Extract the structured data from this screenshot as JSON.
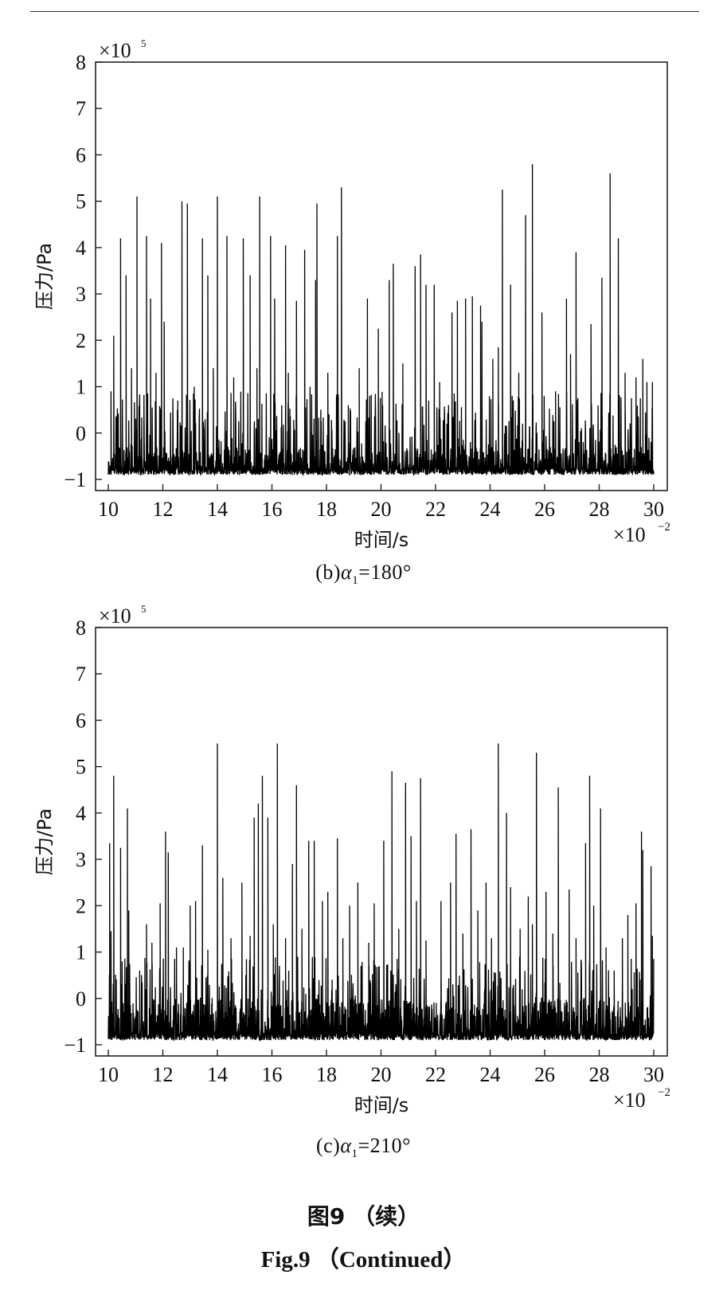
{
  "chart_data": [
    {
      "type": "line",
      "panel": "b",
      "caption_prefix": "(b)",
      "caption_symbol": "α",
      "caption_sub": "1",
      "caption_value": "=180°",
      "xlabel": "时间/s",
      "ylabel": "压力/Pa",
      "x_multiplier": "×10",
      "x_multiplier_exp": "−2",
      "y_multiplier": "×10",
      "y_multiplier_exp": "5",
      "xlim": [
        10,
        30
      ],
      "ylim": [
        -1,
        8
      ],
      "xticks": [
        10,
        12,
        14,
        16,
        18,
        20,
        22,
        24,
        26,
        28,
        30
      ],
      "yticks": [
        -1,
        0,
        1,
        2,
        3,
        4,
        5,
        6,
        7,
        8
      ],
      "xtick_labels": [
        "10",
        "12",
        "14",
        "16",
        "18",
        "20",
        "22",
        "24",
        "26",
        "28",
        "30"
      ],
      "ytick_labels": [
        "−1",
        "0",
        "1",
        "2",
        "3",
        "4",
        "5",
        "6",
        "7",
        "8"
      ],
      "grid": false,
      "baseline_range": [
        -0.9,
        -0.3
      ],
      "peaks": [
        {
          "x": 10.1,
          "y": 0.9
        },
        {
          "x": 10.2,
          "y": 2.1
        },
        {
          "x": 10.45,
          "y": 4.2
        },
        {
          "x": 10.65,
          "y": 3.4
        },
        {
          "x": 10.85,
          "y": 1.4
        },
        {
          "x": 11.05,
          "y": 5.1
        },
        {
          "x": 11.4,
          "y": 4.25
        },
        {
          "x": 11.55,
          "y": 2.9
        },
        {
          "x": 11.75,
          "y": 1.3
        },
        {
          "x": 11.95,
          "y": 4.1
        },
        {
          "x": 12.05,
          "y": 2.4
        },
        {
          "x": 12.55,
          "y": 0.7
        },
        {
          "x": 12.7,
          "y": 5.0
        },
        {
          "x": 12.9,
          "y": 4.95
        },
        {
          "x": 13.15,
          "y": 1.0
        },
        {
          "x": 13.45,
          "y": 4.2
        },
        {
          "x": 13.65,
          "y": 3.4
        },
        {
          "x": 13.85,
          "y": 1.4
        },
        {
          "x": 14.0,
          "y": 5.1
        },
        {
          "x": 14.35,
          "y": 4.25
        },
        {
          "x": 14.6,
          "y": 1.2
        },
        {
          "x": 14.95,
          "y": 4.2
        },
        {
          "x": 15.2,
          "y": 3.4
        },
        {
          "x": 15.45,
          "y": 1.4
        },
        {
          "x": 15.55,
          "y": 5.1
        },
        {
          "x": 15.95,
          "y": 4.25
        },
        {
          "x": 16.1,
          "y": 2.9
        },
        {
          "x": 16.5,
          "y": 4.05
        },
        {
          "x": 16.6,
          "y": 1.3
        },
        {
          "x": 16.9,
          "y": 2.85
        },
        {
          "x": 17.2,
          "y": 3.95
        },
        {
          "x": 17.4,
          "y": 1.0
        },
        {
          "x": 17.6,
          "y": 3.3
        },
        {
          "x": 17.65,
          "y": 4.95
        },
        {
          "x": 18.05,
          "y": 1.3
        },
        {
          "x": 18.4,
          "y": 4.25
        },
        {
          "x": 18.55,
          "y": 5.3
        },
        {
          "x": 18.8,
          "y": 0.6
        },
        {
          "x": 19.2,
          "y": 1.4
        },
        {
          "x": 19.5,
          "y": 2.9
        },
        {
          "x": 19.9,
          "y": 2.25
        },
        {
          "x": 20.3,
          "y": 3.3
        },
        {
          "x": 20.45,
          "y": 3.65
        },
        {
          "x": 20.8,
          "y": 1.5
        },
        {
          "x": 21.25,
          "y": 3.6
        },
        {
          "x": 21.45,
          "y": 3.85
        },
        {
          "x": 21.65,
          "y": 3.2
        },
        {
          "x": 21.95,
          "y": 3.2
        },
        {
          "x": 22.15,
          "y": 1.1
        },
        {
          "x": 22.6,
          "y": 2.6
        },
        {
          "x": 22.8,
          "y": 2.85
        },
        {
          "x": 23.1,
          "y": 2.9
        },
        {
          "x": 23.35,
          "y": 2.95
        },
        {
          "x": 23.65,
          "y": 2.75
        },
        {
          "x": 23.7,
          "y": 2.4
        },
        {
          "x": 24.1,
          "y": 1.6
        },
        {
          "x": 24.3,
          "y": 1.85
        },
        {
          "x": 24.45,
          "y": 5.25
        },
        {
          "x": 24.75,
          "y": 3.2
        },
        {
          "x": 25.05,
          "y": 1.3
        },
        {
          "x": 25.3,
          "y": 4.7
        },
        {
          "x": 25.55,
          "y": 5.8
        },
        {
          "x": 25.9,
          "y": 2.6
        },
        {
          "x": 26.4,
          "y": 0.9
        },
        {
          "x": 26.8,
          "y": 2.9
        },
        {
          "x": 26.95,
          "y": 1.7
        },
        {
          "x": 27.15,
          "y": 3.9
        },
        {
          "x": 27.7,
          "y": 2.35
        },
        {
          "x": 28.1,
          "y": 3.35
        },
        {
          "x": 28.4,
          "y": 5.6
        },
        {
          "x": 28.7,
          "y": 4.2
        },
        {
          "x": 28.95,
          "y": 1.3
        },
        {
          "x": 29.35,
          "y": 1.2
        },
        {
          "x": 29.6,
          "y": 1.6
        },
        {
          "x": 29.75,
          "y": 1.1
        },
        {
          "x": 29.95,
          "y": 1.1
        }
      ]
    },
    {
      "type": "line",
      "panel": "c",
      "caption_prefix": "(c)",
      "caption_symbol": "α",
      "caption_sub": "1",
      "caption_value": "=210°",
      "xlabel": "时间/s",
      "ylabel": "压力/Pa",
      "x_multiplier": "×10",
      "x_multiplier_exp": "−2",
      "y_multiplier": "×10",
      "y_multiplier_exp": "5",
      "xlim": [
        10,
        30
      ],
      "ylim": [
        -1,
        8
      ],
      "xticks": [
        10,
        12,
        14,
        16,
        18,
        20,
        22,
        24,
        26,
        28,
        30
      ],
      "yticks": [
        -1,
        0,
        1,
        2,
        3,
        4,
        5,
        6,
        7,
        8
      ],
      "xtick_labels": [
        "10",
        "12",
        "14",
        "16",
        "18",
        "20",
        "22",
        "24",
        "26",
        "28",
        "30"
      ],
      "ytick_labels": [
        "−1",
        "0",
        "1",
        "2",
        "3",
        "4",
        "5",
        "6",
        "7",
        "8"
      ],
      "grid": false,
      "baseline_range": [
        -0.9,
        0.0
      ],
      "peaks": [
        {
          "x": 10.05,
          "y": 3.35
        },
        {
          "x": 10.1,
          "y": 1.45
        },
        {
          "x": 10.2,
          "y": 4.8
        },
        {
          "x": 10.45,
          "y": 3.25
        },
        {
          "x": 10.7,
          "y": 4.1
        },
        {
          "x": 10.75,
          "y": 1.9
        },
        {
          "x": 11.15,
          "y": 0.6
        },
        {
          "x": 11.4,
          "y": 1.6
        },
        {
          "x": 11.6,
          "y": 1.2
        },
        {
          "x": 11.9,
          "y": 2.05
        },
        {
          "x": 12.1,
          "y": 3.6
        },
        {
          "x": 12.2,
          "y": 3.15
        },
        {
          "x": 12.5,
          "y": 1.1
        },
        {
          "x": 12.75,
          "y": 1.1
        },
        {
          "x": 13.0,
          "y": 2.0
        },
        {
          "x": 13.2,
          "y": 2.1
        },
        {
          "x": 13.45,
          "y": 3.3
        },
        {
          "x": 13.65,
          "y": 1.05
        },
        {
          "x": 14.0,
          "y": 5.5
        },
        {
          "x": 14.2,
          "y": 2.6
        },
        {
          "x": 14.5,
          "y": 1.3
        },
        {
          "x": 14.9,
          "y": 2.5
        },
        {
          "x": 15.2,
          "y": 1.35
        },
        {
          "x": 15.35,
          "y": 3.9
        },
        {
          "x": 15.5,
          "y": 4.2
        },
        {
          "x": 15.65,
          "y": 4.8
        },
        {
          "x": 15.85,
          "y": 3.9
        },
        {
          "x": 16.05,
          "y": 1.6
        },
        {
          "x": 16.2,
          "y": 5.5
        },
        {
          "x": 16.5,
          "y": 1.3
        },
        {
          "x": 16.75,
          "y": 2.9
        },
        {
          "x": 16.9,
          "y": 4.6
        },
        {
          "x": 17.1,
          "y": 1.5
        },
        {
          "x": 17.35,
          "y": 3.4
        },
        {
          "x": 17.55,
          "y": 3.4
        },
        {
          "x": 17.85,
          "y": 2.1
        },
        {
          "x": 18.05,
          "y": 2.3
        },
        {
          "x": 18.4,
          "y": 3.45
        },
        {
          "x": 18.6,
          "y": 1.3
        },
        {
          "x": 18.85,
          "y": 2.0
        },
        {
          "x": 19.15,
          "y": 2.5
        },
        {
          "x": 19.55,
          "y": 1.2
        },
        {
          "x": 19.75,
          "y": 2.05
        },
        {
          "x": 20.1,
          "y": 3.4
        },
        {
          "x": 20.4,
          "y": 4.9
        },
        {
          "x": 20.65,
          "y": 1.5
        },
        {
          "x": 20.9,
          "y": 4.65
        },
        {
          "x": 21.1,
          "y": 3.5
        },
        {
          "x": 21.3,
          "y": 2.1
        },
        {
          "x": 21.45,
          "y": 4.75
        },
        {
          "x": 21.65,
          "y": 1.25
        },
        {
          "x": 22.2,
          "y": 2.1
        },
        {
          "x": 22.55,
          "y": 2.5
        },
        {
          "x": 22.75,
          "y": 3.55
        },
        {
          "x": 23.0,
          "y": 1.4
        },
        {
          "x": 23.3,
          "y": 3.65
        },
        {
          "x": 23.55,
          "y": 1.9
        },
        {
          "x": 23.85,
          "y": 2.5
        },
        {
          "x": 24.05,
          "y": 1.3
        },
        {
          "x": 24.3,
          "y": 5.5
        },
        {
          "x": 24.6,
          "y": 4.0
        },
        {
          "x": 24.75,
          "y": 2.4
        },
        {
          "x": 25.1,
          "y": 1.5
        },
        {
          "x": 25.4,
          "y": 2.2
        },
        {
          "x": 25.55,
          "y": 1.6
        },
        {
          "x": 25.7,
          "y": 5.3
        },
        {
          "x": 26.05,
          "y": 2.3
        },
        {
          "x": 26.3,
          "y": 1.4
        },
        {
          "x": 26.5,
          "y": 4.55
        },
        {
          "x": 26.9,
          "y": 2.35
        },
        {
          "x": 27.15,
          "y": 1.3
        },
        {
          "x": 27.5,
          "y": 3.35
        },
        {
          "x": 27.65,
          "y": 4.8
        },
        {
          "x": 27.8,
          "y": 2.0
        },
        {
          "x": 28.05,
          "y": 4.1
        },
        {
          "x": 28.25,
          "y": 1.1
        },
        {
          "x": 28.55,
          "y": 0.6
        },
        {
          "x": 28.85,
          "y": 1.3
        },
        {
          "x": 29.05,
          "y": 1.8
        },
        {
          "x": 29.35,
          "y": 2.05
        },
        {
          "x": 29.55,
          "y": 3.6
        },
        {
          "x": 29.6,
          "y": 3.2
        },
        {
          "x": 29.9,
          "y": 2.85
        },
        {
          "x": 29.95,
          "y": 1.35
        }
      ]
    }
  ],
  "figure": {
    "caption_cn": "图9 （续）",
    "caption_en": "Fig.9 （Continued）"
  }
}
